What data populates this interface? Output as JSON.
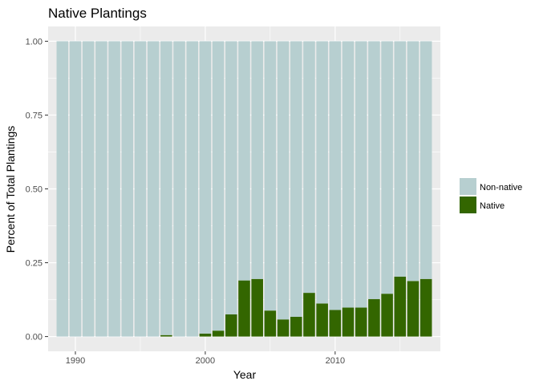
{
  "chart_data": {
    "type": "bar",
    "stacked": true,
    "title": "Native Plantings",
    "xlabel": "Year",
    "ylabel": "Percent of Total Plantings",
    "x": [
      1989,
      1990,
      1991,
      1992,
      1993,
      1994,
      1995,
      1996,
      1997,
      1998,
      1999,
      2000,
      2001,
      2002,
      2003,
      2004,
      2005,
      2006,
      2007,
      2008,
      2009,
      2010,
      2011,
      2012,
      2013,
      2014,
      2015,
      2016,
      2017
    ],
    "series": [
      {
        "name": "Non-native",
        "color": "#b7cfd0",
        "values": [
          1,
          1,
          1,
          1,
          1,
          1,
          1,
          1,
          0.995,
          1,
          1,
          0.99,
          0.98,
          0.925,
          0.81,
          0.805,
          0.912,
          0.942,
          0.933,
          0.852,
          0.888,
          0.91,
          0.902,
          0.902,
          0.873,
          0.855,
          0.797,
          0.812,
          0.805
        ]
      },
      {
        "name": "Native",
        "color": "#336600",
        "values": [
          0,
          0,
          0,
          0,
          0,
          0,
          0,
          0,
          0.005,
          0,
          0,
          0.01,
          0.02,
          0.075,
          0.19,
          0.195,
          0.088,
          0.058,
          0.067,
          0.148,
          0.112,
          0.09,
          0.098,
          0.098,
          0.127,
          0.145,
          0.203,
          0.188,
          0.195
        ]
      }
    ],
    "xlim": [
      1987.9,
      2018.1
    ],
    "ylim": [
      -0.05,
      1.05
    ],
    "x_ticks": [
      1990,
      2000,
      2010
    ],
    "x_tick_labels": [
      "1990",
      "2000",
      "2010"
    ],
    "y_ticks": [
      0,
      0.25,
      0.5,
      0.75,
      1
    ],
    "y_tick_labels": [
      "0.00",
      "0.25",
      "0.50",
      "0.75",
      "1.00"
    ],
    "grid": true,
    "legend_position": "right",
    "legend_entries": [
      "Non-native",
      "Native"
    ],
    "panel_background": "#ebebeb"
  }
}
